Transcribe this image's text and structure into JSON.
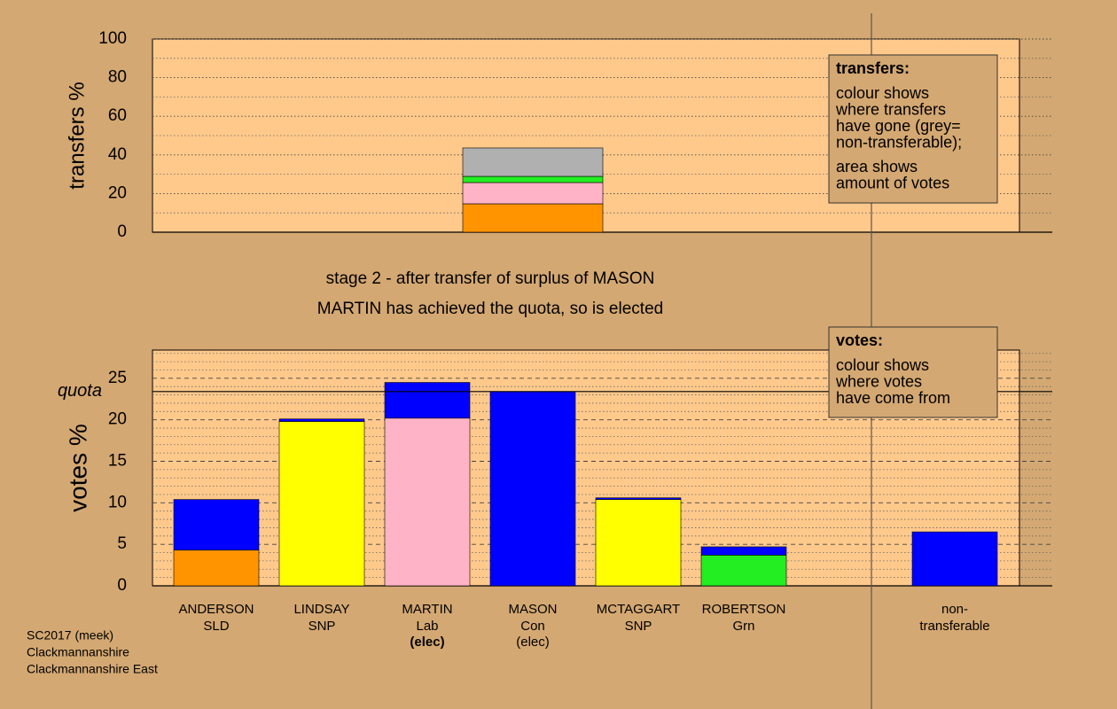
{
  "chart_data": [
    {
      "type": "bar",
      "stacked": true,
      "ylabel": "transfers %",
      "ylim": [
        0,
        100
      ],
      "yticks": [
        0,
        20,
        40,
        60,
        80,
        100
      ],
      "minor_grid": [
        10,
        30,
        50,
        70,
        90
      ],
      "series": [
        {
          "color": "#ff9400",
          "values": [
            null,
            null,
            null,
            14.7,
            null,
            null,
            null,
            null
          ]
        },
        {
          "color": "#ffb3c6",
          "values": [
            null,
            null,
            null,
            11.0,
            null,
            null,
            null,
            null
          ]
        },
        {
          "color": "#22ee22",
          "values": [
            null,
            null,
            null,
            3.2,
            null,
            null,
            null,
            null
          ]
        },
        {
          "color": "#b0b0b0",
          "values": [
            null,
            null,
            null,
            14.7,
            null,
            null,
            null,
            null
          ]
        }
      ],
      "note": {
        "heading": "transfers:",
        "paragraphs": [
          [
            "colour shows",
            "where transfers",
            "have gone (grey=",
            "non-transferable);"
          ],
          [
            "area shows",
            "amount of votes"
          ]
        ]
      }
    },
    {
      "type": "bar",
      "stacked": true,
      "ylabel": "votes %",
      "title": [
        "stage 2 - after transfer of surplus of MASON",
        "MARTIN has achieved the quota, so is elected"
      ],
      "categories": [
        [
          "ANDERSON",
          "SLD"
        ],
        [
          "LINDSAY",
          "SNP"
        ],
        [
          "MARTIN",
          "Lab"
        ],
        [
          "MASON",
          "Con"
        ],
        [
          "MCTAGGART",
          "SNP"
        ],
        [
          "ROBERTSON",
          "Grn"
        ],
        null,
        [
          "non-",
          "transferable"
        ]
      ],
      "notes": [
        null,
        null,
        "(elec)",
        "(elec)",
        null,
        null,
        null,
        null
      ],
      "notes_bold": [
        false,
        false,
        true,
        false,
        false,
        false,
        false,
        false
      ],
      "ylim": [
        0,
        28.4
      ],
      "yticks": [
        0,
        5,
        10,
        15,
        20,
        25
      ],
      "minor_grid": [
        1,
        2,
        3,
        4,
        6,
        7,
        8,
        9,
        11,
        12,
        13,
        14,
        16,
        17,
        18,
        19,
        21,
        22,
        23,
        24,
        26,
        27,
        28
      ],
      "quota": {
        "value": 23.4,
        "label": "quota"
      },
      "series": [
        {
          "color": "#ff9400",
          "values": [
            4.3,
            null,
            null,
            null,
            null,
            null,
            null,
            null
          ]
        },
        {
          "color": "#ffff00",
          "values": [
            null,
            19.8,
            null,
            null,
            10.4,
            null,
            null,
            null
          ]
        },
        {
          "color": "#ffb3c6",
          "values": [
            null,
            null,
            20.2,
            null,
            null,
            null,
            null,
            null
          ]
        },
        {
          "color": "#22ee22",
          "values": [
            null,
            null,
            null,
            null,
            null,
            3.7,
            null,
            null
          ]
        },
        {
          "color": "#0000ff",
          "values": [
            6.1,
            0.3,
            4.3,
            23.4,
            0.2,
            1.0,
            null,
            6.5
          ]
        }
      ],
      "note": {
        "heading": "votes:",
        "paragraphs": [
          [
            "colour shows",
            "where votes",
            "have come from"
          ]
        ]
      }
    }
  ],
  "footer": [
    "SC2017 (meek)",
    "Clackmannanshire",
    "Clackmannanshire East"
  ]
}
